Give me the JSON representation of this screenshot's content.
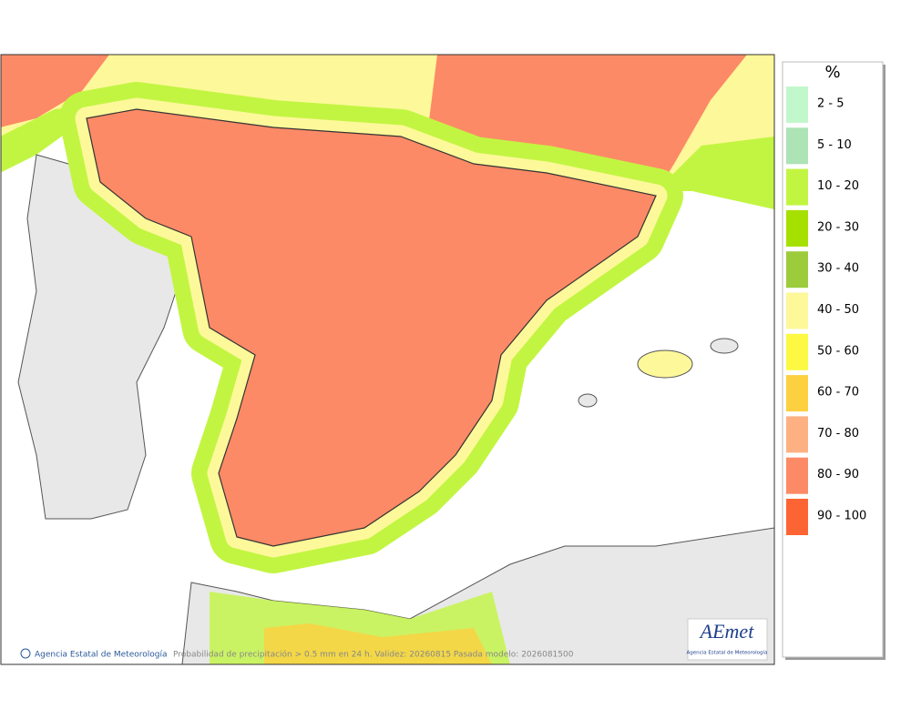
{
  "legend": {
    "title": "%",
    "items": [
      {
        "label": "2 - 5",
        "color": "#c2f7cb"
      },
      {
        "label": "5 - 10",
        "color": "#ade3b5"
      },
      {
        "label": "10 - 20",
        "color": "#c2f542"
      },
      {
        "label": "20 - 30",
        "color": "#a6e000"
      },
      {
        "label": "30 - 40",
        "color": "#9ccc3c"
      },
      {
        "label": "40 - 50",
        "color": "#fdf899"
      },
      {
        "label": "50 - 60",
        "color": "#fdf842"
      },
      {
        "label": "60 - 70",
        "color": "#fdd040"
      },
      {
        "label": "70 - 80",
        "color": "#fdb183"
      },
      {
        "label": "80 - 90",
        "color": "#fd8a66"
      },
      {
        "label": "90 - 100",
        "color": "#fd6433"
      }
    ]
  },
  "footer": {
    "credit": "Agencia Estatal de Meteorología",
    "caption": "Probabilidad de precipitación > 0.5 mm en 24 h. Validez: 20260815 Pasada modelo: 2026081500"
  },
  "logo": {
    "name": "AEmet",
    "subtitle": "Agencia Estatal de Meteorología"
  }
}
